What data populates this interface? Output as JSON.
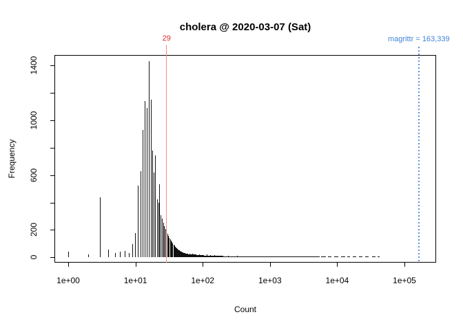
{
  "title": "cholera @ 2020-03-07 (Sat)",
  "axes": {
    "xlabel": "Count",
    "ylabel": "Frequency",
    "x_tick_labels": [
      "1e+00",
      "1e+01",
      "1e+02",
      "1e+03",
      "1e+04",
      "1e+05"
    ],
    "x_tick_values": [
      1,
      10,
      100,
      1000,
      10000,
      100000
    ],
    "y_tick_values_all": [
      0,
      200,
      400,
      600,
      800,
      1000,
      1200,
      1400
    ],
    "y_tick_values_labeled": [
      0,
      200,
      600,
      1000,
      1400
    ],
    "x_scale": "log10",
    "ylim": [
      0,
      1450
    ]
  },
  "annotations": {
    "red_marker": {
      "label": "29",
      "value": 29,
      "text_color": "#dd2c2c",
      "line_color": "#f08c8c"
    },
    "blue_marker": {
      "label": "magrittr = 163,339",
      "value": 163339,
      "text_color": "#4184d9",
      "line_color": "#5b93d8",
      "line_style": "dotted"
    }
  },
  "chart_data": {
    "type": "bar",
    "subtype": "histogram-log-x",
    "title": "cholera @ 2020-03-07 (Sat)",
    "xlabel": "Count",
    "ylabel": "Frequency",
    "x_scale": "log10",
    "xlim": [
      1,
      100000
    ],
    "ylim": [
      0,
      1450
    ],
    "bar_color": "#111111",
    "bars": [
      [
        1,
        40
      ],
      [
        2,
        22
      ],
      [
        3,
        440
      ],
      [
        4,
        55
      ],
      [
        5,
        30
      ],
      [
        6,
        42
      ],
      [
        7,
        46
      ],
      [
        8,
        30
      ],
      [
        9,
        97
      ],
      [
        10,
        175
      ],
      [
        11,
        525
      ],
      [
        12,
        630
      ],
      [
        13,
        930
      ],
      [
        14,
        1140
      ],
      [
        15,
        1090
      ],
      [
        16,
        1430
      ],
      [
        17,
        1150
      ],
      [
        18,
        780
      ],
      [
        19,
        620
      ],
      [
        20,
        745
      ],
      [
        21,
        425
      ],
      [
        22,
        400
      ],
      [
        23,
        535
      ],
      [
        24,
        305
      ],
      [
        25,
        280
      ],
      [
        26,
        250
      ],
      [
        27,
        225
      ],
      [
        28,
        205
      ],
      [
        29,
        195
      ],
      [
        30,
        170
      ],
      [
        31,
        155
      ],
      [
        32,
        142
      ],
      [
        33,
        130
      ],
      [
        34,
        120
      ],
      [
        35,
        110
      ],
      [
        36,
        100
      ],
      [
        37,
        92
      ],
      [
        38,
        85
      ],
      [
        39,
        78
      ],
      [
        40,
        72
      ],
      [
        41,
        67
      ],
      [
        42,
        62
      ],
      [
        43,
        58
      ],
      [
        44,
        54
      ],
      [
        45,
        50
      ],
      [
        46,
        47
      ],
      [
        47,
        44
      ],
      [
        48,
        42
      ],
      [
        49,
        40
      ],
      [
        50,
        38
      ],
      [
        51,
        36
      ],
      [
        52,
        34
      ],
      [
        53,
        33
      ],
      [
        54,
        31
      ],
      [
        55,
        30
      ],
      [
        56,
        29
      ],
      [
        57,
        28
      ],
      [
        58,
        27
      ],
      [
        59,
        26
      ],
      [
        60,
        25
      ],
      [
        64,
        28
      ],
      [
        70,
        26
      ],
      [
        78,
        22
      ],
      [
        90,
        20
      ],
      [
        100,
        18
      ],
      [
        115,
        22
      ],
      [
        130,
        16
      ],
      [
        150,
        15
      ],
      [
        180,
        13
      ],
      [
        240,
        11
      ],
      [
        330,
        10
      ],
      [
        460,
        9
      ],
      [
        700,
        8
      ],
      [
        1100,
        7
      ]
    ],
    "tail_segments": [
      [
        60,
        80,
        22
      ],
      [
        80,
        105,
        16
      ],
      [
        105,
        140,
        13
      ],
      [
        140,
        200,
        11
      ],
      [
        200,
        300,
        9
      ],
      [
        300,
        500,
        8
      ],
      [
        500,
        900,
        7
      ],
      [
        900,
        1600,
        6
      ],
      [
        1600,
        3000,
        6
      ],
      [
        3000,
        5500,
        5
      ],
      [
        5800,
        6800,
        5
      ],
      [
        7300,
        8300,
        4
      ],
      [
        9000,
        10500,
        5
      ],
      [
        11500,
        13000,
        4
      ],
      [
        14000,
        15500,
        4
      ],
      [
        17000,
        19000,
        4
      ],
      [
        21000,
        23500,
        4
      ],
      [
        26000,
        29000,
        4
      ],
      [
        33000,
        37000,
        4
      ],
      [
        40000,
        43000,
        4
      ]
    ],
    "vlines": [
      {
        "x": 29,
        "label": "29",
        "color": "red",
        "style": "solid"
      },
      {
        "x": 163339,
        "label": "magrittr = 163,339",
        "color": "blue",
        "style": "dotted"
      }
    ]
  }
}
